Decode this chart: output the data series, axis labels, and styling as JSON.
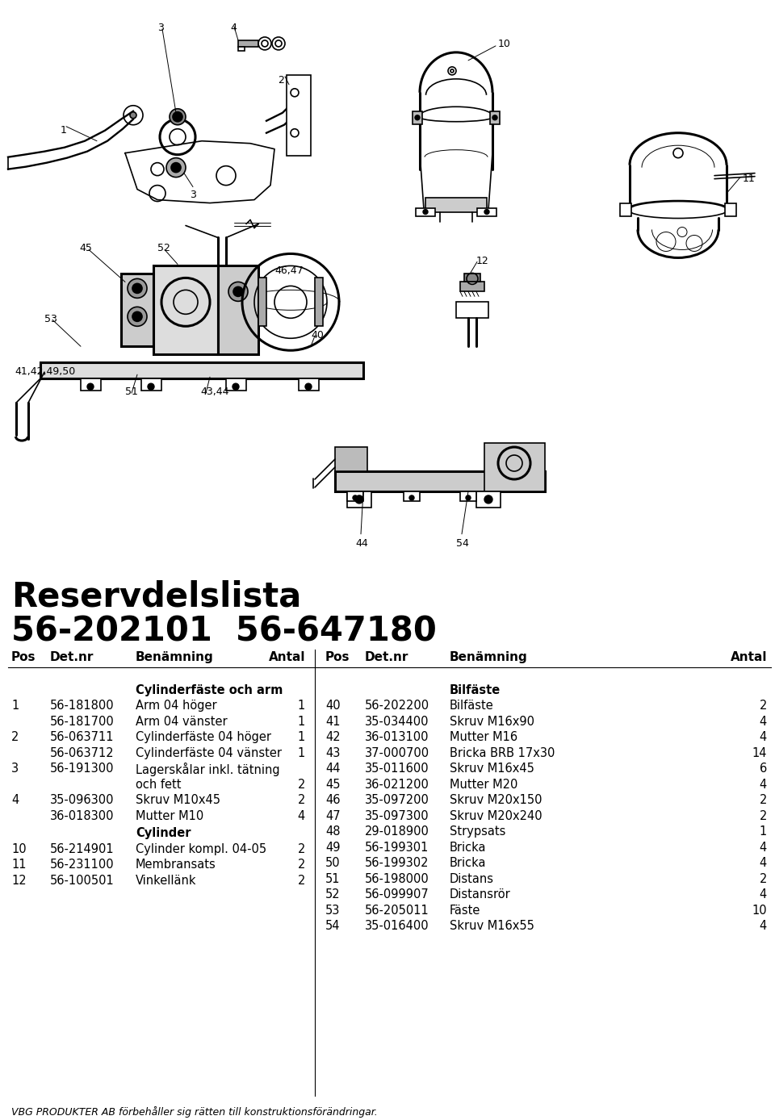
{
  "title_line1": "Reservdelslista",
  "title_line2": "56-202101  56-647180",
  "col_headers": [
    "Pos",
    "Det.nr",
    "Benämning",
    "Antal"
  ],
  "section1_header": "Cylinderfäste och arm",
  "section2_header": "Cylinder",
  "section3_header": "Bilfäste",
  "left_rows": [
    [
      "1",
      "56-181800",
      "Arm 04 höger",
      "1"
    ],
    [
      "",
      "56-181700",
      "Arm 04 vänster",
      "1"
    ],
    [
      "2",
      "56-063711",
      "Cylinderfäste 04 höger",
      "1"
    ],
    [
      "",
      "56-063712",
      "Cylinderfäste 04 vänster",
      "1"
    ],
    [
      "3",
      "56-191300",
      "Lagerskålar inkl. tätning",
      ""
    ],
    [
      "",
      "",
      "och fett",
      "2"
    ],
    [
      "4",
      "35-096300",
      "Skruv M10x45",
      "2"
    ],
    [
      "",
      "36-018300",
      "Mutter M10",
      "4"
    ]
  ],
  "left_rows2": [
    [
      "10",
      "56-214901",
      "Cylinder kompl. 04-05",
      "2"
    ],
    [
      "11",
      "56-231100",
      "Membransats",
      "2"
    ],
    [
      "12",
      "56-100501",
      "Vinkellänk",
      "2"
    ]
  ],
  "right_rows": [
    [
      "40",
      "56-202200",
      "Bilfäste",
      "2"
    ],
    [
      "41",
      "35-034400",
      "Skruv M16x90",
      "4"
    ],
    [
      "42",
      "36-013100",
      "Mutter M16",
      "4"
    ],
    [
      "43",
      "37-000700",
      "Bricka BRB 17x30",
      "14"
    ],
    [
      "44",
      "35-011600",
      "Skruv M16x45",
      "6"
    ],
    [
      "45",
      "36-021200",
      "Mutter M20",
      "4"
    ],
    [
      "46",
      "35-097200",
      "Skruv M20x150",
      "2"
    ],
    [
      "47",
      "35-097300",
      "Skruv M20x240",
      "2"
    ],
    [
      "48",
      "29-018900",
      "Strypsats",
      "1"
    ],
    [
      "49",
      "56-199301",
      "Bricka",
      "4"
    ],
    [
      "50",
      "56-199302",
      "Bricka",
      "4"
    ],
    [
      "51",
      "56-198000",
      "Distans",
      "2"
    ],
    [
      "52",
      "56-099907",
      "Distansrör",
      "4"
    ],
    [
      "53",
      "56-205011",
      "Fäste",
      "10"
    ],
    [
      "54",
      "35-016400",
      "Skruv M16x55",
      "4"
    ]
  ],
  "footer": "VBG PRODUKTER AB förbehåller sig rätten till konstruktionsförändringar.",
  "bg_color": "#ffffff",
  "text_color": "#000000",
  "lw": 1.2
}
